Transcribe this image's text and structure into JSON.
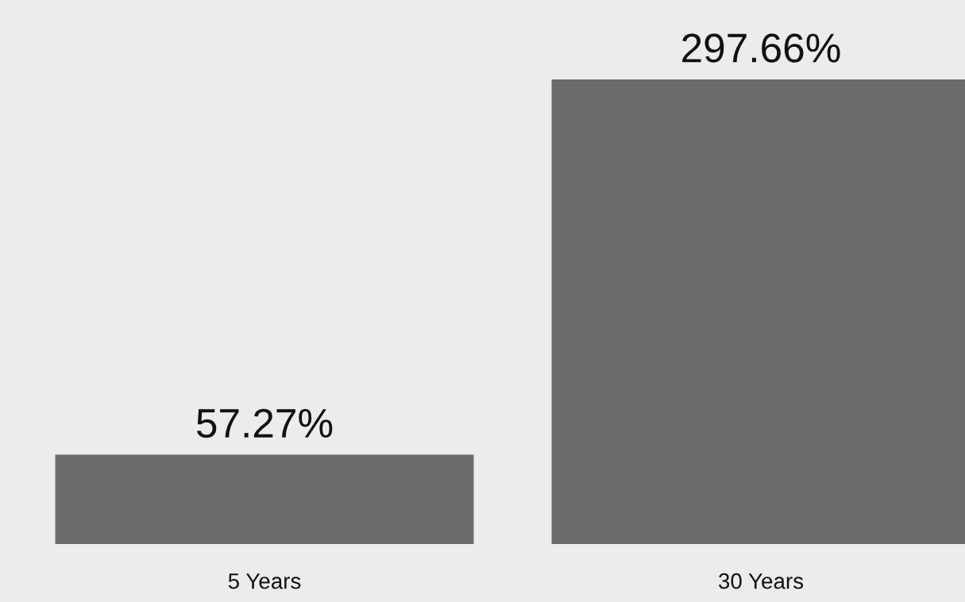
{
  "chart_data": {
    "type": "bar",
    "categories": [
      "5 Years",
      "30 Years"
    ],
    "values": [
      57.27,
      297.66
    ],
    "value_labels": [
      "57.27%",
      "297.66%"
    ],
    "color": "#6b6b6b",
    "grid": false,
    "legend": false
  }
}
